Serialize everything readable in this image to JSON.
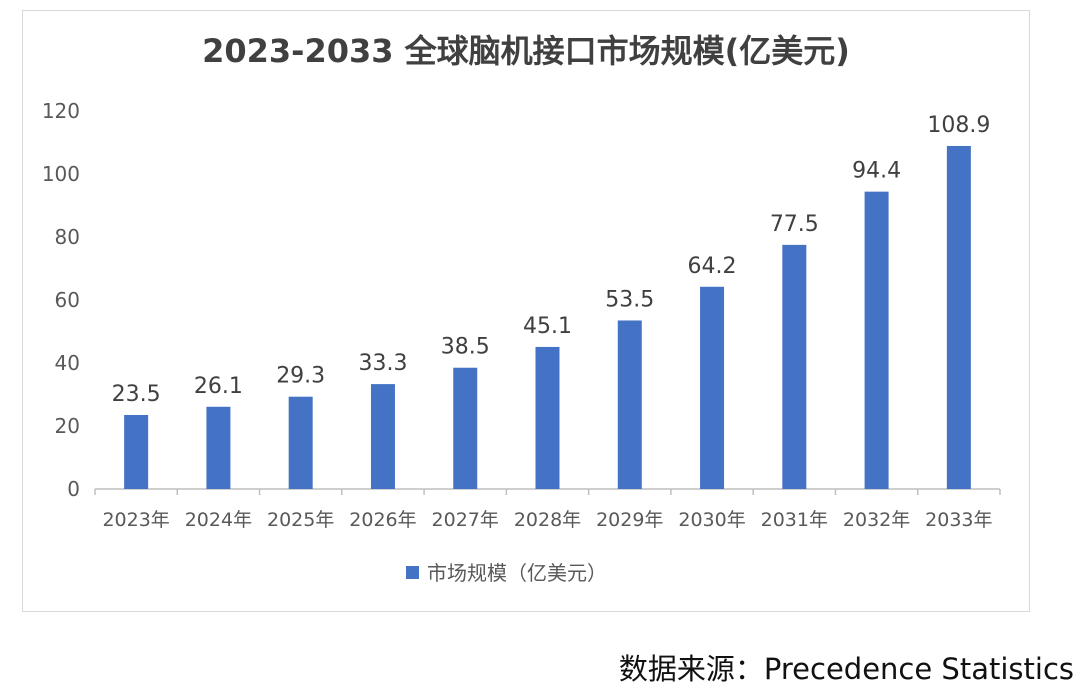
{
  "chart_data": {
    "type": "bar",
    "title": "2023-2033 全球脑机接口市场规模(亿美元)",
    "categories": [
      "2023年",
      "2024年",
      "2025年",
      "2026年",
      "2027年",
      "2028年",
      "2029年",
      "2030年",
      "2031年",
      "2032年",
      "2033年"
    ],
    "series": [
      {
        "name": "市场规模（亿美元）",
        "values": [
          23.5,
          26.1,
          29.3,
          33.3,
          38.5,
          45.1,
          53.5,
          64.2,
          77.5,
          94.4,
          108.9
        ]
      }
    ],
    "data_labels": [
      "23.5",
      "26.1",
      "29.3",
      "33.3",
      "38.5",
      "45.1",
      "53.5",
      "64.2",
      "77.5",
      "94.4",
      "108.9"
    ],
    "y_ticks": [
      0,
      20,
      40,
      60,
      80,
      100,
      120
    ],
    "ylim": [
      0,
      120
    ],
    "grid": false,
    "legend_position": "bottom",
    "bar_color": "#4472c4"
  },
  "source": "数据来源：Precedence Statistics"
}
